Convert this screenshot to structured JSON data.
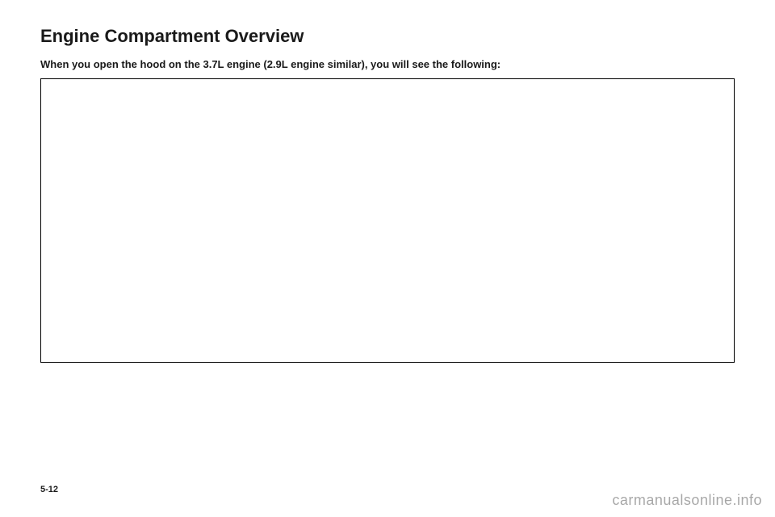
{
  "heading": "Engine Compartment Overview",
  "intro": "When you open the hood on the 3.7L engine (2.9L engine similar), you will see the following:",
  "pageNumber": "5-12",
  "watermark": "carmanualsonline.info"
}
